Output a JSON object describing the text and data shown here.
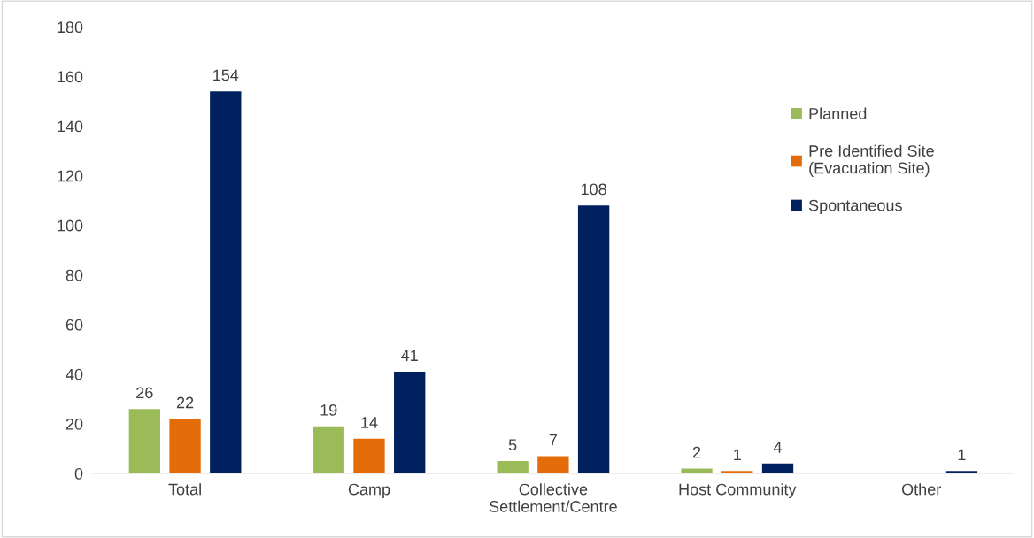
{
  "chart_data": {
    "type": "bar",
    "categories": [
      "Total",
      "Camp",
      "Collective\nSettlement/Centre",
      "Host Community",
      "Other"
    ],
    "series": [
      {
        "name": "Planned",
        "color": "#9bbb59",
        "values": [
          26,
          19,
          5,
          2,
          null
        ]
      },
      {
        "name": "Pre Identified Site\n(Evacuation Site)",
        "color": "#e36c09",
        "values": [
          22,
          14,
          7,
          1,
          null
        ]
      },
      {
        "name": "Spontaneous",
        "color": "#002060",
        "values": [
          154,
          41,
          108,
          4,
          1
        ]
      }
    ],
    "ylim": [
      0,
      180
    ],
    "yticks": [
      0,
      20,
      40,
      60,
      80,
      100,
      120,
      140,
      160,
      180
    ],
    "data_labels": true,
    "grid": false,
    "legend": "right"
  }
}
